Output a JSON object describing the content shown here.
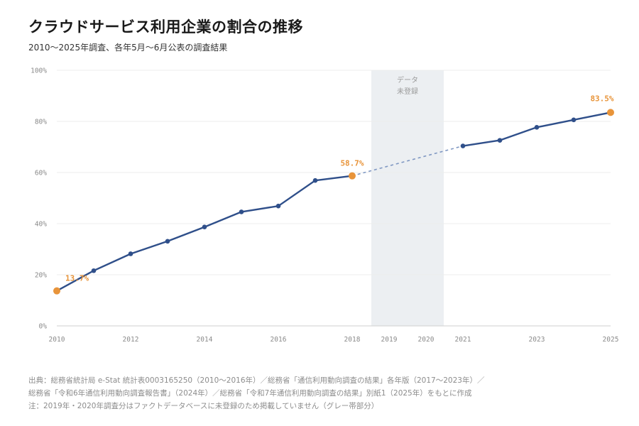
{
  "header": {
    "title": "クラウドサービス利用企業の割合の推移",
    "subtitle": "2010〜2025年調査、各年5月〜6月公表の調査結果"
  },
  "chart_data": {
    "type": "line",
    "title": "クラウドサービス利用企業の割合の推移",
    "subtitle": "2010〜2025年調査、各年5月〜6月公表の調査結果",
    "xlabel": "",
    "ylabel": "",
    "ylim": [
      0,
      100
    ],
    "xlim": [
      2010,
      2025
    ],
    "y_ticks": [
      0,
      20,
      40,
      60,
      80,
      100
    ],
    "y_tick_labels": [
      "0%",
      "20%",
      "40%",
      "60%",
      "80%",
      "100%"
    ],
    "x_ticks": [
      2010,
      2012,
      2014,
      2016,
      2018,
      2019,
      2020,
      2021,
      2023,
      2025
    ],
    "x_tick_labels": [
      "2010",
      "2012",
      "2014",
      "2016",
      "2018",
      "2019",
      "2020",
      "2021",
      "2023",
      "2025"
    ],
    "grid": true,
    "series": [
      {
        "color": "#2f4f8a",
        "x": [
          2010,
          2011,
          2012,
          2013,
          2014,
          2015,
          2016,
          2017,
          2018,
          2021,
          2022,
          2023,
          2024,
          2025
        ],
        "values": [
          13.7,
          21.6,
          28.2,
          33.1,
          38.7,
          44.6,
          46.9,
          56.9,
          58.7,
          70.4,
          72.6,
          77.7,
          80.6,
          83.5
        ]
      }
    ],
    "highlighted_points": [
      {
        "x": 2010,
        "value": 13.7,
        "label": "13.7%"
      },
      {
        "x": 2018,
        "value": 58.7,
        "label": "58.7%"
      },
      {
        "x": 2025,
        "value": 83.5,
        "label": "83.5%"
      }
    ],
    "missing_range": {
      "from": 2019,
      "to": 2020,
      "label_line1": "データ",
      "label_line2": "未登録"
    },
    "colors": {
      "line": "#2f4f8a",
      "highlight": "#e8943a",
      "missing_band": "#eceff2",
      "dashed": "#7f97c2"
    }
  },
  "footer": {
    "line1": "出典：総務省統計局 e-Stat 統計表0003165250（2010〜2016年）／総務省「通信利用動向調査の結果」各年版（2017〜2023年）／",
    "line2": "総務省「令和6年通信利用動向調査報告書」（2024年）／総務省「令和7年通信利用動向調査の結果」別紙1（2025年）をもとに作成",
    "line3": "注：2019年・2020年調査分はファクトデータベースに未登録のため掲載していません（グレー帯部分）"
  }
}
